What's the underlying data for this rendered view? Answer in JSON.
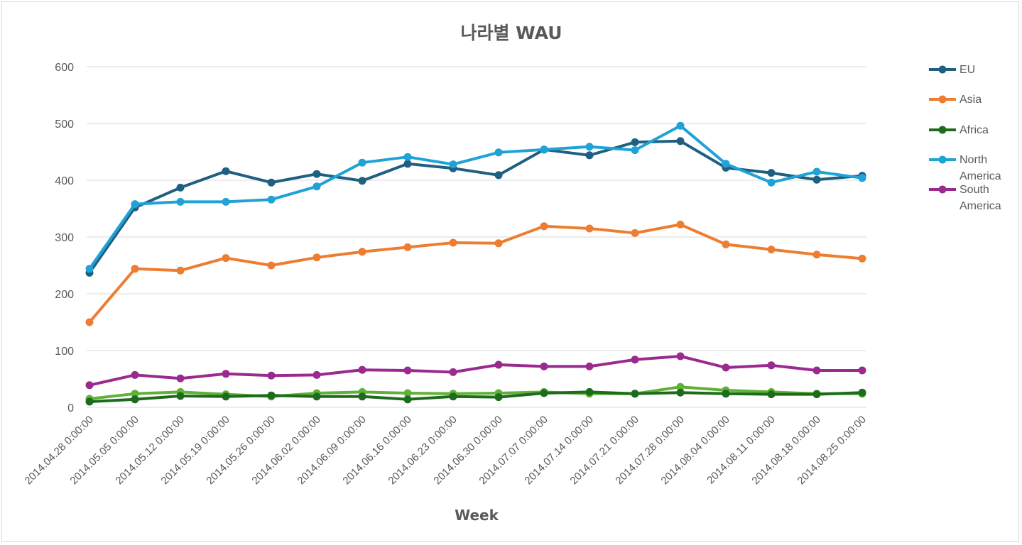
{
  "chart_data": {
    "type": "line",
    "title": "나라별 WAU",
    "xlabel": "Week",
    "ylabel": "",
    "ylim": [
      0,
      600
    ],
    "yticks": [
      0,
      100,
      200,
      300,
      400,
      500,
      600
    ],
    "grid": true,
    "legend_position": "right",
    "categories": [
      "2014.04.28 0:00:00",
      "2014.05.05 0:00:00",
      "2014.05.12 0:00:00",
      "2014.05.19 0:00:00",
      "2014.05.26 0:00:00",
      "2014.06.02 0:00:00",
      "2014.06.09 0:00:00",
      "2014.06.16 0:00:00",
      "2014.06.23 0:00:00",
      "2014.06.30 0:00:00",
      "2014.07.07 0:00:00",
      "2014.07.14 0:00:00",
      "2014.07.21 0:00:00",
      "2014.07.28 0:00:00",
      "2014.08.04 0:00:00",
      "2014.08.11 0:00:00",
      "2014.08.18 0:00:00",
      "2014.08.25 0:00:00"
    ],
    "series": [
      {
        "name": "EU",
        "color": "#1f5f80",
        "values": [
          237,
          352,
          387,
          416,
          396,
          411,
          399,
          429,
          421,
          409,
          454,
          444,
          467,
          469,
          422,
          413,
          401,
          408
        ]
      },
      {
        "name": "Asia",
        "color": "#ed7d31",
        "values": [
          150,
          244,
          241,
          263,
          250,
          264,
          274,
          282,
          290,
          289,
          319,
          315,
          307,
          322,
          287,
          278,
          269,
          262
        ]
      },
      {
        "name": "Africa",
        "color": "#1e6b1e",
        "values": [
          10,
          14,
          20,
          19,
          21,
          19,
          19,
          14,
          19,
          18,
          25,
          27,
          24,
          26,
          24,
          23,
          23,
          26
        ]
      },
      {
        "name": "North America",
        "color": "#1fa2d6",
        "values": [
          244,
          358,
          362,
          362,
          366,
          389,
          431,
          441,
          428,
          449,
          454,
          459,
          453,
          496,
          429,
          396,
          415,
          404
        ]
      },
      {
        "name": "South America",
        "color": "#9b2a8f",
        "values": [
          39,
          57,
          51,
          59,
          56,
          57,
          66,
          65,
          62,
          75,
          72,
          72,
          84,
          90,
          70,
          74,
          65,
          65
        ]
      },
      {
        "color": "#5fb137",
        "values": [
          15,
          24,
          27,
          23,
          19,
          25,
          27,
          25,
          24,
          25,
          27,
          24,
          24,
          36,
          30,
          27,
          24,
          24
        ]
      }
    ]
  }
}
